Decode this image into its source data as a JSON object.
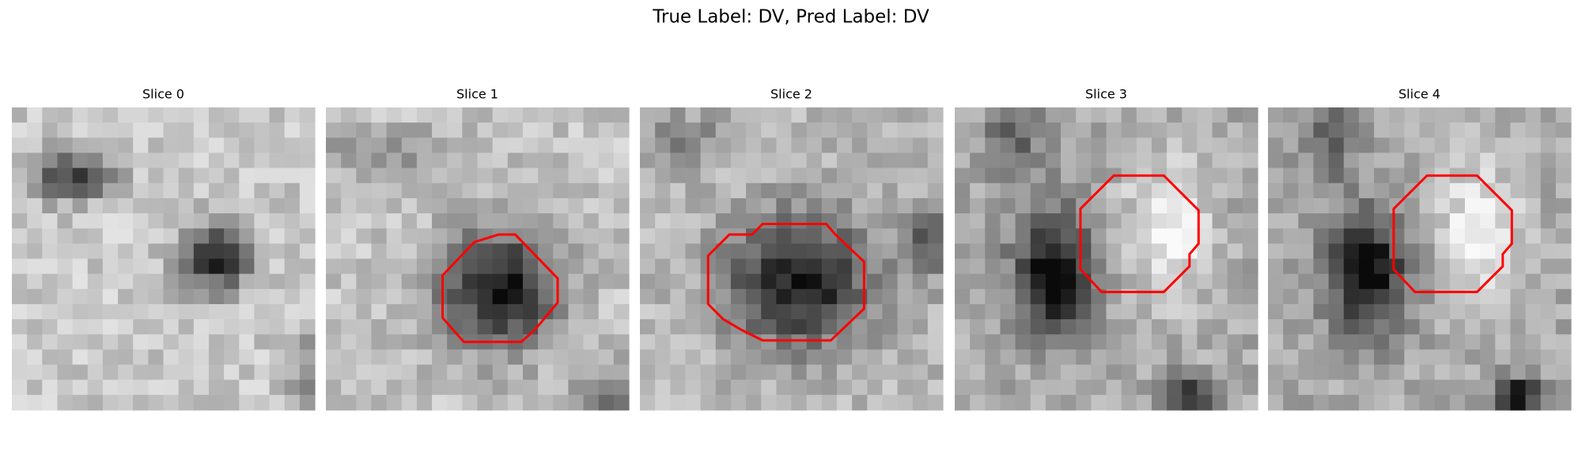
{
  "title": "True Label: DV, Pred Label: DV",
  "panels": [
    {
      "title": "Slice 0"
    },
    {
      "title": "Slice 1"
    },
    {
      "title": "Slice 2"
    },
    {
      "title": "Slice 3"
    },
    {
      "title": "Slice 4"
    }
  ]
}
